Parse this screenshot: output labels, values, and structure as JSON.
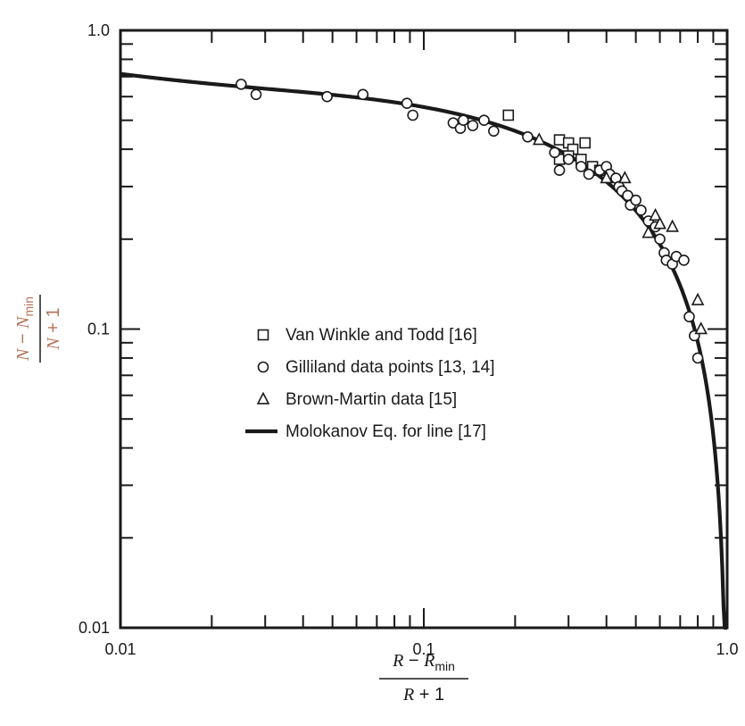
{
  "chart_data": {
    "type": "scatter",
    "x_scale": "log",
    "y_scale": "log",
    "xlim": [
      0.01,
      1.0
    ],
    "ylim": [
      0.01,
      1.0
    ],
    "x_ticks": [
      {
        "value": 0.01,
        "label": "0.01"
      },
      {
        "value": 0.1,
        "label": "0.1"
      },
      {
        "value": 1.0,
        "label": "1.0"
      }
    ],
    "y_ticks": [
      {
        "value": 0.01,
        "label": "0.01"
      },
      {
        "value": 0.1,
        "label": "0.1"
      },
      {
        "value": 1.0,
        "label": "1.0"
      }
    ],
    "xlabel": {
      "numerator": {
        "var1": "R",
        "op": " − ",
        "var2": "R",
        "sub": "min"
      },
      "denominator": {
        "var": "R",
        "rest": " + 1"
      }
    },
    "ylabel": {
      "numerator": {
        "var1": "N",
        "op": " − ",
        "var2": "N",
        "sub": "min"
      },
      "denominator": {
        "var": "N",
        "rest": " + 1"
      }
    },
    "grid": false,
    "legend_position": "center",
    "colors": {
      "ylabel": "#b5745a",
      "ink": "#1a1a1a"
    },
    "series": [
      {
        "name": "Van Winkle and Todd [16]",
        "marker": "square",
        "points": [
          [
            0.19,
            0.52
          ],
          [
            0.28,
            0.43
          ],
          [
            0.3,
            0.42
          ],
          [
            0.31,
            0.4
          ],
          [
            0.34,
            0.42
          ],
          [
            0.28,
            0.37
          ],
          [
            0.3,
            0.38
          ],
          [
            0.33,
            0.37
          ],
          [
            0.36,
            0.35
          ],
          [
            0.38,
            0.34
          ]
        ]
      },
      {
        "name": "Gilliland data points [13, 14]",
        "marker": "circle",
        "points": [
          [
            0.025,
            0.66
          ],
          [
            0.028,
            0.61
          ],
          [
            0.048,
            0.6
          ],
          [
            0.063,
            0.61
          ],
          [
            0.088,
            0.57
          ],
          [
            0.092,
            0.52
          ],
          [
            0.125,
            0.49
          ],
          [
            0.132,
            0.47
          ],
          [
            0.135,
            0.5
          ],
          [
            0.145,
            0.48
          ],
          [
            0.158,
            0.5
          ],
          [
            0.17,
            0.46
          ],
          [
            0.22,
            0.44
          ],
          [
            0.27,
            0.39
          ],
          [
            0.28,
            0.34
          ],
          [
            0.3,
            0.37
          ],
          [
            0.33,
            0.35
          ],
          [
            0.35,
            0.33
          ],
          [
            0.38,
            0.34
          ],
          [
            0.4,
            0.35
          ],
          [
            0.41,
            0.33
          ],
          [
            0.43,
            0.32
          ],
          [
            0.44,
            0.3
          ],
          [
            0.45,
            0.29
          ],
          [
            0.47,
            0.28
          ],
          [
            0.48,
            0.26
          ],
          [
            0.5,
            0.27
          ],
          [
            0.52,
            0.25
          ],
          [
            0.55,
            0.23
          ],
          [
            0.58,
            0.22
          ],
          [
            0.6,
            0.2
          ],
          [
            0.62,
            0.18
          ],
          [
            0.63,
            0.17
          ],
          [
            0.66,
            0.165
          ],
          [
            0.68,
            0.175
          ],
          [
            0.72,
            0.17
          ],
          [
            0.75,
            0.11
          ],
          [
            0.78,
            0.095
          ],
          [
            0.8,
            0.08
          ]
        ]
      },
      {
        "name": "Brown-Martin data [15]",
        "marker": "triangle",
        "points": [
          [
            0.24,
            0.43
          ],
          [
            0.4,
            0.32
          ],
          [
            0.46,
            0.32
          ],
          [
            0.55,
            0.21
          ],
          [
            0.58,
            0.24
          ],
          [
            0.6,
            0.225
          ],
          [
            0.66,
            0.22
          ],
          [
            0.8,
            0.125
          ],
          [
            0.82,
            0.1
          ]
        ]
      },
      {
        "name": "Molokanov Eq. for line [17]",
        "marker": "line",
        "equation": "molokanov"
      }
    ]
  }
}
